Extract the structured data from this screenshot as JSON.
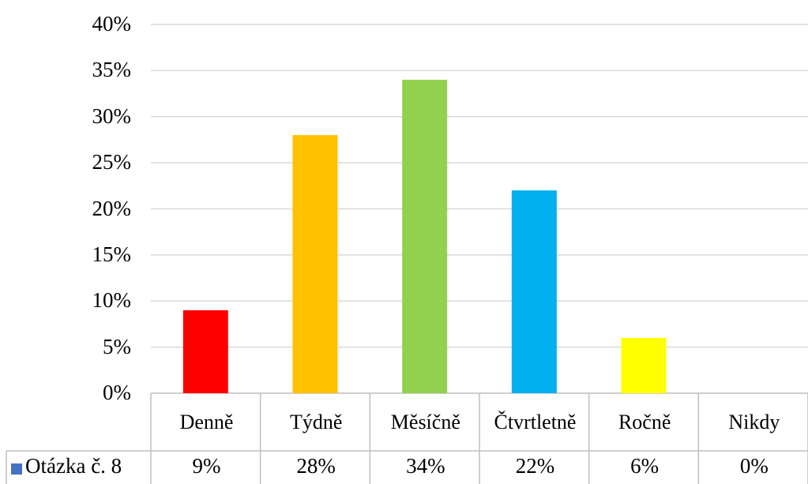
{
  "chart_data": {
    "type": "table",
    "chart_kind": "bar",
    "categories": [
      "Denně",
      "Týdně",
      "Měsíčně",
      "Čtvrtletně",
      "Ročně",
      "Nikdy"
    ],
    "series": [
      {
        "name": "Otázka č. 8",
        "values": [
          0.09,
          0.28,
          0.34,
          0.22,
          0.06,
          0.0
        ],
        "value_labels": [
          "9%",
          "28%",
          "34%",
          "22%",
          "6%",
          "0%"
        ],
        "legend_color": "#4472C4"
      }
    ],
    "bar_colors": [
      "#FF0000",
      "#FFC000",
      "#92D050",
      "#00B0F0",
      "#FFFF00",
      "#7F7F7F"
    ],
    "y_ticks": [
      "0%",
      "5%",
      "10%",
      "15%",
      "20%",
      "25%",
      "30%",
      "35%",
      "40%"
    ],
    "ylim": [
      0,
      0.4
    ],
    "grid": true,
    "title": "",
    "xlabel": "",
    "ylabel": "",
    "legend": "data-table-left"
  }
}
